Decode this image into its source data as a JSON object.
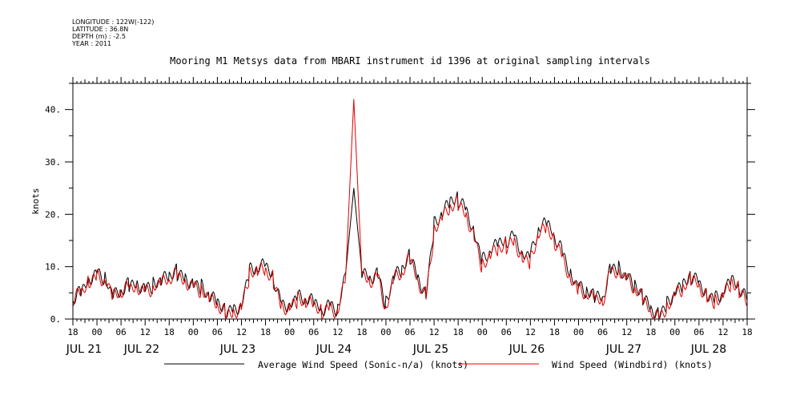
{
  "header": {
    "longitude": "LONGITUDE : 122W(-122)",
    "latitude": "LATITUDE : 36.8N",
    "depth": "DEPTH (m) : -2.5",
    "year": "YEAR : 2011"
  },
  "chart_data": {
    "type": "line",
    "title": "Mooring M1 Metsys data from MBARI instrument id 1396 at original sampling intervals",
    "xlabel": "",
    "ylabel": "knots",
    "ylim": [
      0,
      45
    ],
    "yticks": [
      "0.",
      "10.",
      "20.",
      "30.",
      "40."
    ],
    "x_unit": "hours since JUL 20 18:00, 2011",
    "xlim": [
      0,
      168
    ],
    "hour_ticks": [
      "18",
      "00",
      "06",
      "12",
      "18",
      "00",
      "06",
      "12",
      "18",
      "00",
      "06",
      "12",
      "18",
      "00",
      "06",
      "12",
      "18",
      "00",
      "06",
      "12",
      "18",
      "00",
      "06",
      "12",
      "18",
      "00",
      "06",
      "12",
      "18"
    ],
    "date_labels": [
      "JUL 21",
      "JUL 22",
      "JUL 23",
      "JUL 24",
      "JUL 25",
      "JUL 26",
      "JUL 27",
      "JUL 28"
    ],
    "legend_position": "bottom",
    "x": [
      0,
      2,
      4,
      6,
      8,
      10,
      12,
      14,
      16,
      18,
      20,
      22,
      24,
      26,
      28,
      30,
      32,
      34,
      36,
      38,
      40,
      42,
      44,
      46,
      48,
      50,
      52,
      54,
      56,
      58,
      60,
      62,
      64,
      66,
      68,
      70,
      72,
      74,
      76,
      78,
      80,
      82,
      84,
      86,
      88,
      90,
      92,
      94,
      96,
      98,
      100,
      102,
      104,
      106,
      108,
      110,
      112,
      114,
      116,
      118,
      120,
      122,
      124,
      126,
      128,
      130,
      132,
      134,
      136,
      138,
      140,
      142,
      144,
      146,
      148,
      150,
      152,
      154,
      156,
      158,
      160,
      162,
      164,
      166,
      168
    ],
    "series": [
      {
        "name": "Average Wind Speed (Sonic-n/a) (knots)",
        "color": "#000000",
        "values": [
          3.5,
          5,
          8,
          9,
          8,
          4,
          5,
          6.5,
          7,
          6,
          6.5,
          7,
          8,
          9,
          8,
          7,
          6,
          4,
          3,
          1.5,
          2,
          3,
          9,
          9.5,
          10,
          8,
          3,
          3,
          4,
          3.5,
          3,
          2,
          3,
          2,
          9,
          25,
          9,
          8,
          9,
          3,
          8,
          9,
          12,
          8,
          5,
          18,
          20,
          22,
          23,
          21,
          17,
          11,
          13,
          14,
          15,
          16,
          13,
          12,
          17,
          18,
          16,
          13,
          9,
          6,
          5,
          4,
          4,
          10,
          10,
          8,
          6,
          4,
          2,
          1,
          3,
          5,
          6,
          8,
          7,
          5,
          4,
          5,
          7,
          6,
          3.5
        ]
      },
      {
        "name": "Wind Speed (Windbird) (knots)",
        "color": "#e00000",
        "values": [
          3.5,
          5,
          7.5,
          8.5,
          7.5,
          4,
          5,
          6,
          6.5,
          5.5,
          6,
          6.5,
          7.5,
          8.5,
          7.5,
          6.5,
          5.5,
          3.5,
          2.5,
          1,
          1.5,
          2.5,
          8.5,
          9,
          9,
          7.5,
          2.5,
          2.5,
          3.5,
          3,
          2.5,
          1.5,
          2.5,
          1.5,
          8.5,
          42,
          8.5,
          7.5,
          8.5,
          2,
          7.5,
          8.5,
          11.5,
          7.5,
          4.5,
          17,
          19,
          21,
          22,
          20,
          16,
          10,
          12,
          13,
          14,
          15,
          12,
          11,
          16,
          17,
          15,
          12,
          8,
          5.5,
          4.5,
          3.5,
          3.5,
          9.5,
          9.5,
          7.5,
          5.5,
          3.5,
          1.5,
          0.5,
          2.5,
          4.5,
          5.5,
          7.5,
          6.5,
          4.5,
          3.5,
          4.5,
          6.5,
          5.5,
          3
        ]
      }
    ]
  }
}
